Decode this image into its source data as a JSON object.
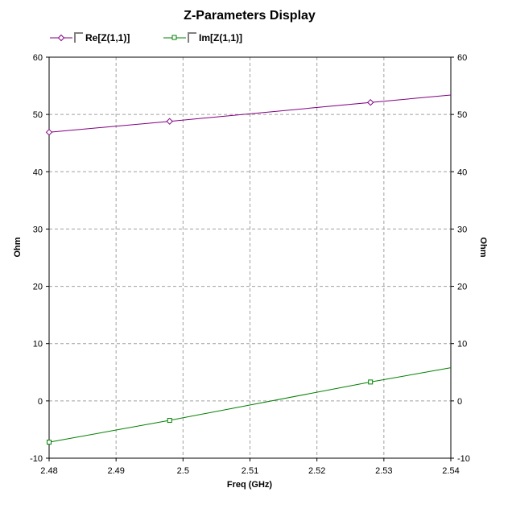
{
  "chart_data": {
    "type": "line",
    "title": "Z-Parameters Display",
    "xlabel": "Freq (GHz)",
    "ylabel": "Ohm",
    "y2label": "Ohm",
    "xlim": [
      2.48,
      2.54
    ],
    "ylim": [
      -10,
      60
    ],
    "x_ticks": [
      "2.48",
      "2.49",
      "2.5",
      "2.51",
      "2.52",
      "2.53",
      "2.54"
    ],
    "y_ticks": [
      "-10",
      "0",
      "10",
      "20",
      "30",
      "40",
      "50",
      "60"
    ],
    "grid": true,
    "legend_position": "top-left",
    "series": [
      {
        "name": "Re[Z(1,1)]",
        "color": "#800080",
        "marker": "diamond",
        "x": [
          2.48,
          2.498,
          2.528,
          2.54
        ],
        "y": [
          46.9,
          48.8,
          52.1,
          53.4
        ],
        "marker_x": [
          2.48,
          2.498,
          2.528
        ]
      },
      {
        "name": "Im[Z(1,1)]",
        "color": "#008000",
        "marker": "square",
        "x": [
          2.48,
          2.498,
          2.528,
          2.54
        ],
        "y": [
          -7.2,
          -3.4,
          3.3,
          5.8
        ],
        "marker_x": [
          2.48,
          2.498,
          2.528
        ]
      }
    ]
  }
}
